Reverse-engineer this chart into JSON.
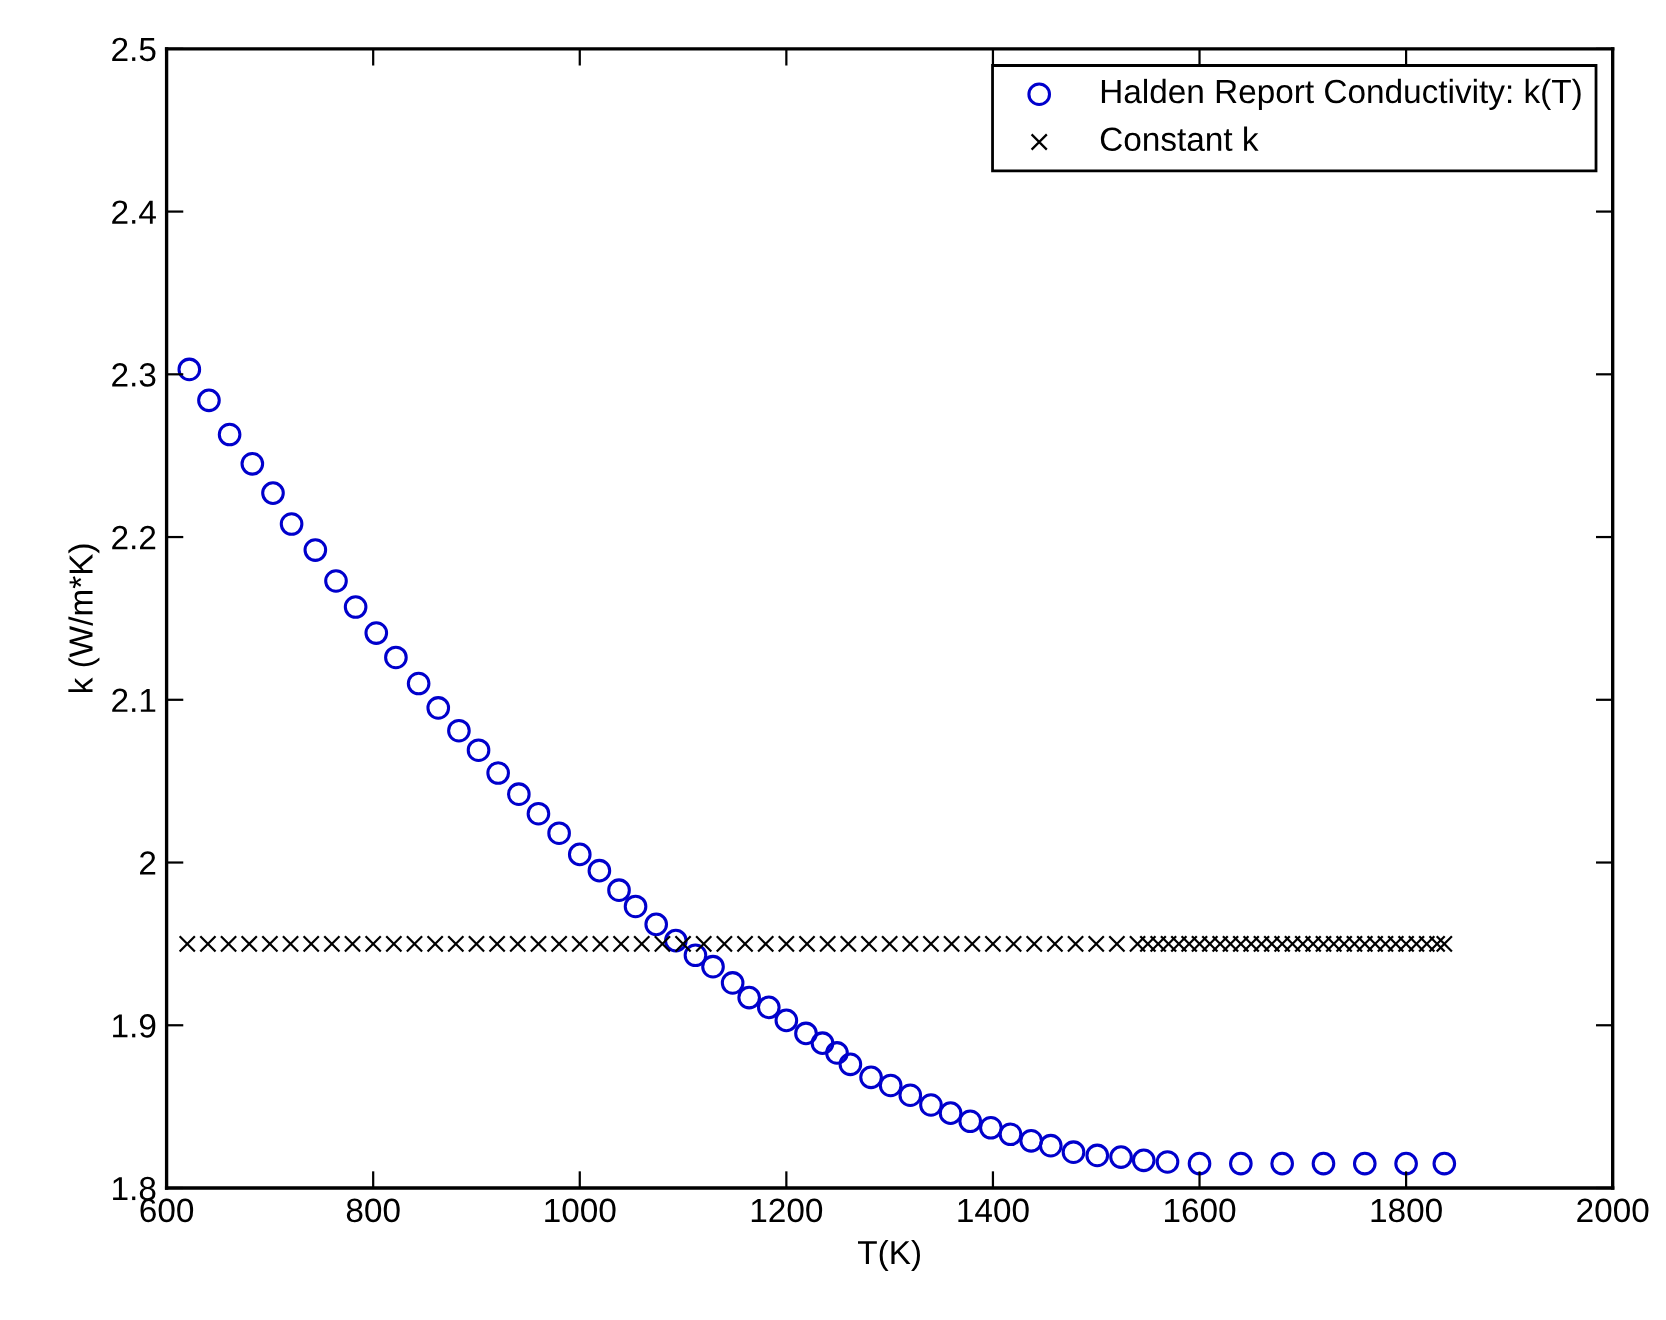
{
  "chart_data": {
    "type": "scatter",
    "xlabel": "T(K)",
    "ylabel": "k (W/m*K)",
    "xlim": [
      600,
      2000
    ],
    "xticks": [
      600,
      800,
      1000,
      1200,
      1400,
      1600,
      1800,
      2000
    ],
    "ylim": [
      1.8,
      2.5
    ],
    "yticks": [
      1.8,
      1.9,
      2,
      2.1,
      2.2,
      2.3,
      2.4,
      2.5
    ],
    "grid": false,
    "legend": "top right",
    "series": [
      {
        "name": "Halden Report Conductivity: k(T)",
        "color": "#0000cc",
        "marker": "circle",
        "x": [
          622,
          641,
          661,
          683,
          703,
          721,
          744,
          764,
          783,
          803,
          822,
          844,
          863,
          883,
          902,
          921,
          941,
          960,
          980,
          1000,
          1019,
          1038,
          1054,
          1074,
          1093,
          1112,
          1129,
          1148,
          1164,
          1183,
          1200,
          1219,
          1235,
          1249,
          1262,
          1282,
          1301,
          1320,
          1340,
          1359,
          1378,
          1398,
          1417,
          1437,
          1456,
          1478,
          1501,
          1524,
          1546,
          1569,
          1600,
          1640,
          1680,
          1720,
          1760,
          1800,
          1837
        ],
        "values": [
          2.303,
          2.284,
          2.263,
          2.245,
          2.227,
          2.208,
          2.192,
          2.173,
          2.157,
          2.141,
          2.126,
          2.11,
          2.095,
          2.081,
          2.069,
          2.055,
          2.042,
          2.03,
          2.018,
          2.005,
          1.995,
          1.983,
          1.973,
          1.962,
          1.952,
          1.943,
          1.936,
          1.926,
          1.917,
          1.911,
          1.903,
          1.895,
          1.889,
          1.883,
          1.876,
          1.868,
          1.863,
          1.857,
          1.851,
          1.846,
          1.841,
          1.837,
          1.833,
          1.829,
          1.826,
          1.822,
          1.82,
          1.819,
          1.817,
          1.816,
          1.815,
          1.815,
          1.815,
          1.815,
          1.815,
          1.815,
          1.815
        ]
      },
      {
        "name": "Constant k",
        "color": "#000000",
        "marker": "cross",
        "x": [
          620,
          640,
          660,
          680,
          700,
          720,
          740,
          760,
          780,
          800,
          820,
          840,
          860,
          880,
          900,
          920,
          940,
          960,
          980,
          1000,
          1020,
          1040,
          1060,
          1080,
          1100,
          1120,
          1140,
          1160,
          1180,
          1200,
          1220,
          1240,
          1260,
          1280,
          1300,
          1320,
          1340,
          1360,
          1380,
          1400,
          1420,
          1440,
          1460,
          1480,
          1500,
          1520,
          1540,
          1550,
          1560,
          1570,
          1580,
          1590,
          1600,
          1610,
          1620,
          1630,
          1640,
          1650,
          1660,
          1670,
          1680,
          1690,
          1700,
          1710,
          1720,
          1730,
          1740,
          1750,
          1760,
          1770,
          1780,
          1790,
          1800,
          1810,
          1820,
          1830,
          1837
        ],
        "values": [
          1.95,
          1.95,
          1.95,
          1.95,
          1.95,
          1.95,
          1.95,
          1.95,
          1.95,
          1.95,
          1.95,
          1.95,
          1.95,
          1.95,
          1.95,
          1.95,
          1.95,
          1.95,
          1.95,
          1.95,
          1.95,
          1.95,
          1.95,
          1.95,
          1.95,
          1.95,
          1.95,
          1.95,
          1.95,
          1.95,
          1.95,
          1.95,
          1.95,
          1.95,
          1.95,
          1.95,
          1.95,
          1.95,
          1.95,
          1.95,
          1.95,
          1.95,
          1.95,
          1.95,
          1.95,
          1.95,
          1.95,
          1.95,
          1.95,
          1.95,
          1.95,
          1.95,
          1.95,
          1.95,
          1.95,
          1.95,
          1.95,
          1.95,
          1.95,
          1.95,
          1.95,
          1.95,
          1.95,
          1.95,
          1.95,
          1.95,
          1.95,
          1.95,
          1.95,
          1.95,
          1.95,
          1.95,
          1.95,
          1.95,
          1.95,
          1.95,
          1.95
        ]
      }
    ]
  }
}
